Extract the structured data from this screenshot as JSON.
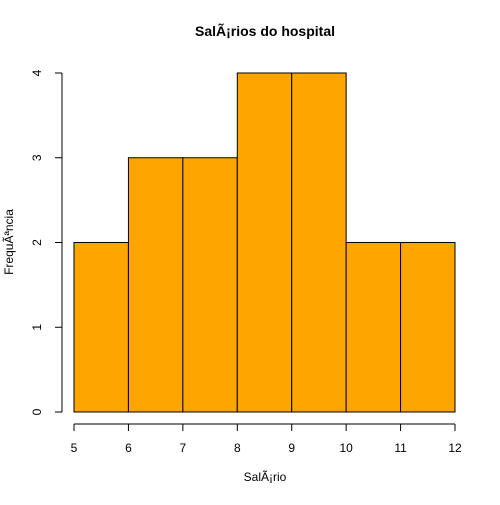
{
  "chart_data": {
    "type": "bar",
    "title": "SalÃ¡rios do hospital",
    "xlabel": "SalÃ¡rio",
    "ylabel": "FrequÃªncia",
    "bins": [
      {
        "from": 5,
        "to": 6,
        "count": 2
      },
      {
        "from": 6,
        "to": 7,
        "count": 3
      },
      {
        "from": 7,
        "to": 8,
        "count": 3
      },
      {
        "from": 8,
        "to": 9,
        "count": 4
      },
      {
        "from": 9,
        "to": 10,
        "count": 4
      },
      {
        "from": 10,
        "to": 11,
        "count": 2
      },
      {
        "from": 11,
        "to": 12,
        "count": 2
      }
    ],
    "xlim": [
      5,
      12
    ],
    "ylim": [
      0,
      4
    ],
    "xticks": [
      5,
      6,
      7,
      8,
      9,
      10,
      11,
      12
    ],
    "yticks": [
      0,
      1,
      2,
      3,
      4
    ],
    "bar_color": "#FFA500",
    "edge_color": "#000000",
    "grid": false
  }
}
